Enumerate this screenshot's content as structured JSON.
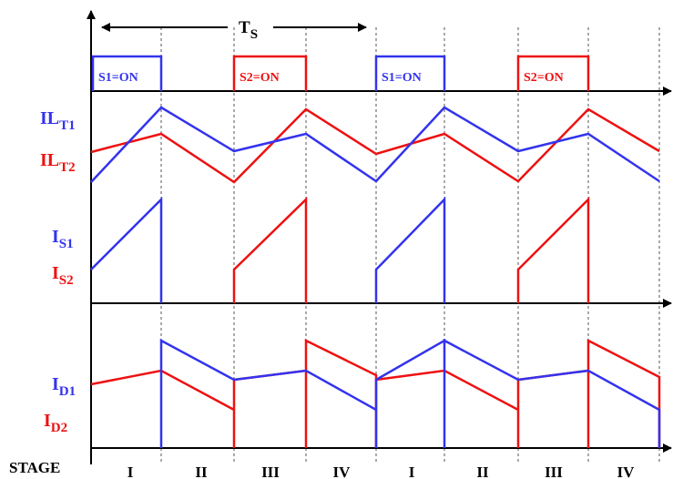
{
  "period_label": "T",
  "period_label_sub": "S",
  "gate_labels": {
    "s1_on_1": "S1=ON",
    "s2_on_1": "S2=ON",
    "s1_on_2": "S1=ON",
    "s2_on_2": "S2=ON"
  },
  "signals": {
    "ilt1": {
      "main": "IL",
      "sub": "T1",
      "color": "#3333ee"
    },
    "ilt2": {
      "main": "IL",
      "sub": "T2",
      "color": "#ee1111"
    },
    "is1": {
      "main": "I",
      "sub": "S1",
      "color": "#3333ee"
    },
    "is2": {
      "main": "I",
      "sub": "S2",
      "color": "#ee1111"
    },
    "id1": {
      "main": "I",
      "sub": "D1",
      "color": "#3333ee"
    },
    "id2": {
      "main": "I",
      "sub": "D2",
      "color": "#ee1111"
    }
  },
  "stage_title": "STAGE",
  "stages": [
    "I",
    "II",
    "III",
    "IV",
    "I",
    "II",
    "III",
    "IV"
  ],
  "colors": {
    "blue": "#3333ee",
    "red": "#ee1111",
    "axis": "#000000",
    "grid": "#555555"
  }
}
